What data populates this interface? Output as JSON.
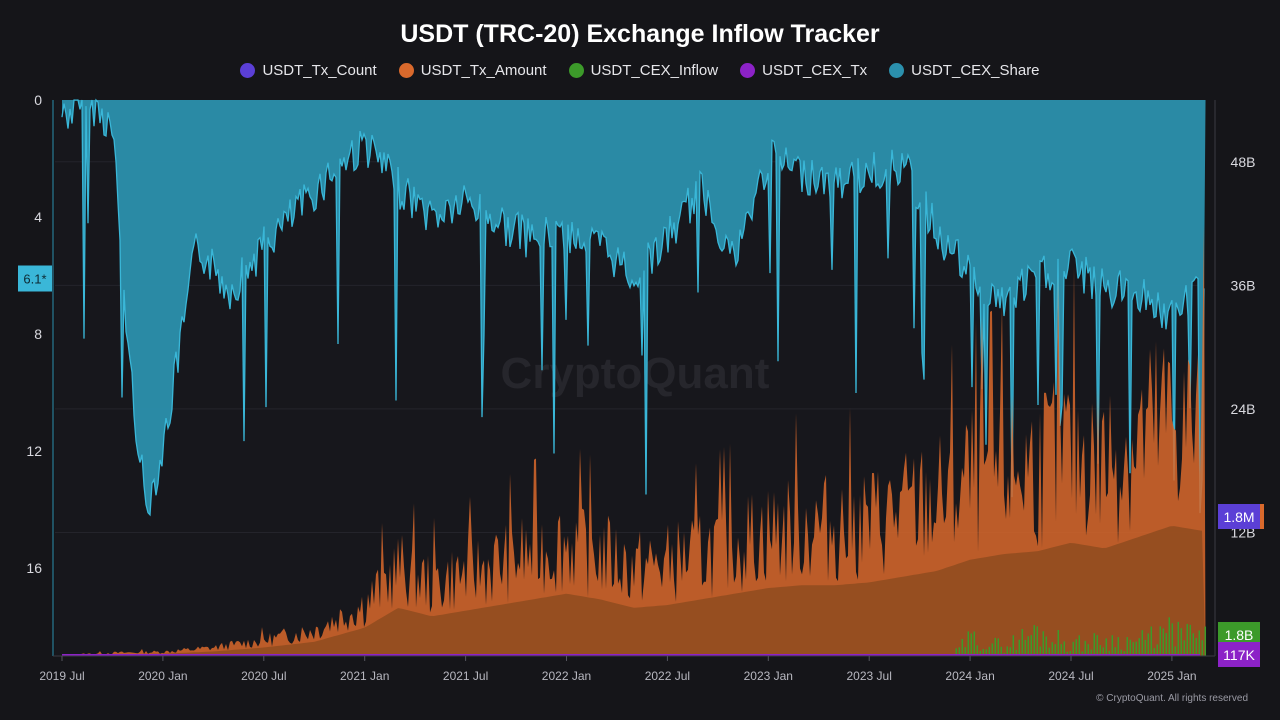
{
  "colors": {
    "background": "#151519",
    "tx_count": "#5b3fd6",
    "tx_amount": "#d9692c",
    "cex_inflow": "#3c9a2a",
    "cex_tx": "#8c22c7",
    "cex_share": "#2b90ad",
    "cex_share_line": "#3ab7d8"
  },
  "chart_data": {
    "type": "area",
    "title": "USDT (TRC-20) Exchange Inflow Tracker",
    "legend": [
      {
        "name": "USDT_Tx_Count",
        "color": "#5b3fd6"
      },
      {
        "name": "USDT_Tx_Amount",
        "color": "#d9692c"
      },
      {
        "name": "USDT_CEX_Inflow",
        "color": "#3c9a2a"
      },
      {
        "name": "USDT_CEX_Tx",
        "color": "#8c22c7"
      },
      {
        "name": "USDT_CEX_Share",
        "color": "#2b90ad"
      }
    ],
    "x_ticks": [
      "2019 Jul",
      "2020 Jan",
      "2020 Jul",
      "2021 Jan",
      "2021 Jul",
      "2022 Jan",
      "2022 Jul",
      "2023 Jan",
      "2023 Jul",
      "2024 Jan",
      "2024 Jul",
      "2025 Jan"
    ],
    "left_axis": {
      "ticks": [
        "0",
        "4",
        "8",
        "12",
        "16"
      ],
      "range": [
        0,
        19
      ],
      "inverted": true,
      "current_label": "6.1*"
    },
    "right_axis": {
      "ticks": [
        "48B",
        "36B",
        "24B",
        "12B"
      ],
      "range": [
        0,
        54
      ],
      "unit": "B"
    },
    "badges": [
      {
        "series": "USDT_Tx_Count",
        "label": "1.8M",
        "color": "#5b3fd6"
      },
      {
        "series": "USDT_CEX_Inflow",
        "label": "1.8B",
        "color": "#3c9a2a"
      },
      {
        "series": "USDT_CEX_Tx",
        "label": "117K",
        "color": "#8c22c7"
      }
    ],
    "series": [
      {
        "name": "USDT_CEX_Share",
        "axis": "left",
        "x": [
          "2019 Jul",
          "2019 Sep",
          "2019 Oct",
          "2019 Nov",
          "2019 Dec",
          "2020 Jan",
          "2020 Mar",
          "2020 May",
          "2020 Jul",
          "2020 Sep",
          "2020 Nov",
          "2021 Jan",
          "2021 Mar",
          "2021 May",
          "2021 Jul",
          "2021 Sep",
          "2021 Nov",
          "2022 Jan",
          "2022 Mar",
          "2022 May",
          "2022 Jul",
          "2022 Sep",
          "2022 Nov",
          "2023 Jan",
          "2023 Mar",
          "2023 May",
          "2023 Jul",
          "2023 Sep",
          "2023 Nov",
          "2024 Jan",
          "2024 Mar",
          "2024 May",
          "2024 Jul",
          "2024 Sep",
          "2024 Nov",
          "2025 Jan",
          "2025 Mar"
        ],
        "values": [
          0.5,
          0.2,
          1.0,
          9.0,
          14.0,
          12.0,
          5.0,
          6.5,
          5.0,
          3.8,
          2.5,
          1.5,
          3.0,
          4.0,
          3.5,
          4.2,
          4.8,
          4.5,
          5.0,
          6.0,
          4.8,
          3.0,
          5.5,
          2.0,
          2.5,
          2.8,
          2.5,
          2.2,
          4.5,
          6.0,
          7.0,
          6.0,
          5.7,
          6.5,
          6.5,
          7.5,
          6.1
        ]
      },
      {
        "name": "USDT_Tx_Amount",
        "axis": "right",
        "x": [
          "2019 Jul",
          "2019 Oct",
          "2020 Jan",
          "2020 Apr",
          "2020 Jul",
          "2020 Oct",
          "2021 Jan",
          "2021 Mar",
          "2021 May",
          "2021 Jul",
          "2021 Sep",
          "2021 Nov",
          "2022 Jan",
          "2022 Mar",
          "2022 May",
          "2022 Jul",
          "2022 Sep",
          "2022 Nov",
          "2023 Jan",
          "2023 Mar",
          "2023 May",
          "2023 Jul",
          "2023 Sep",
          "2023 Nov",
          "2024 Jan",
          "2024 Mar",
          "2024 May",
          "2024 Jul",
          "2024 Sep",
          "2024 Nov",
          "2025 Jan",
          "2025 Mar"
        ],
        "values": [
          0.1,
          0.3,
          0.4,
          0.8,
          1.5,
          2.5,
          5.0,
          8.5,
          7.0,
          8.0,
          9.0,
          10.0,
          11.0,
          10.0,
          8.5,
          9.0,
          10.0,
          11.0,
          12.0,
          12.5,
          12.5,
          13.0,
          14.0,
          15.0,
          17.0,
          18.0,
          18.5,
          20.0,
          19.0,
          21.0,
          23.0,
          22.0
        ]
      },
      {
        "name": "USDT_CEX_Inflow",
        "axis": "right",
        "x": [
          "2023 Dec",
          "2024 Jan",
          "2024 Mar",
          "2024 May",
          "2024 Jul",
          "2024 Sep",
          "2024 Nov",
          "2025 Jan",
          "2025 Mar"
        ],
        "values": [
          0.2,
          1.8,
          1.0,
          2.5,
          1.2,
          1.6,
          1.5,
          2.5,
          1.8
        ]
      }
    ]
  },
  "watermark": "CryptoQuant",
  "copyright": "© CryptoQuant. All rights reserved"
}
